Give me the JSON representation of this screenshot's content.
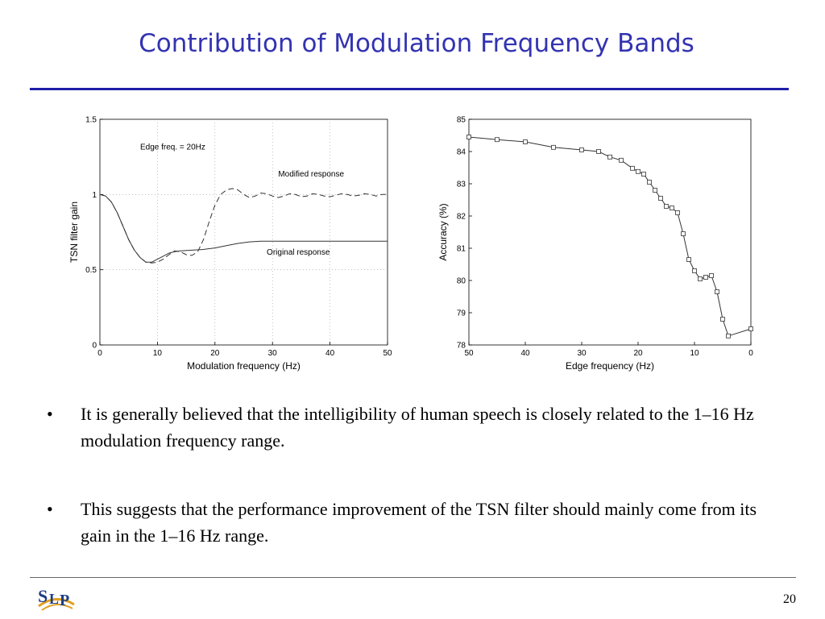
{
  "slide": {
    "title": "Contribution of Modulation Frequency Bands",
    "page_number": "20",
    "logo_text": "SLP",
    "bullets": [
      "It is generally believed that the intelligibility of human speech is closely related to the 1–16 Hz modulation frequency range.",
      "This suggests that the performance improvement of the TSN filter should mainly come from its gain in the 1–16 Hz range."
    ],
    "bullet_symbol": "•"
  },
  "chart_data": [
    {
      "type": "line",
      "xlabel": "Modulation frequency (Hz)",
      "ylabel": "TSN filter gain",
      "xlim": [
        0,
        50
      ],
      "ylim": [
        0,
        1.5
      ],
      "xticks": [
        0,
        10,
        20,
        30,
        40,
        50
      ],
      "yticks": [
        0,
        0.5,
        1,
        1.5
      ],
      "ytick_labels": [
        "0",
        "0.5",
        "1",
        "1.5"
      ],
      "grid": "dotted",
      "annotations": [
        "Edge freq. = 20Hz",
        "Modified response",
        "Original response"
      ],
      "edge_frequency": 20,
      "series": [
        {
          "name": "Original response",
          "style": "solid",
          "x": [
            0,
            1,
            2,
            3,
            4,
            5,
            6,
            7,
            8,
            9,
            10,
            11,
            12,
            13,
            14,
            16,
            18,
            20,
            22,
            24,
            26,
            28,
            30,
            35,
            40,
            45,
            50
          ],
          "y": [
            1.0,
            0.99,
            0.95,
            0.88,
            0.79,
            0.7,
            0.63,
            0.58,
            0.55,
            0.55,
            0.57,
            0.59,
            0.61,
            0.62,
            0.625,
            0.63,
            0.635,
            0.645,
            0.66,
            0.675,
            0.685,
            0.69,
            0.69,
            0.69,
            0.69,
            0.69,
            0.69
          ]
        },
        {
          "name": "Modified response",
          "style": "dashed",
          "x": [
            0,
            1,
            2,
            3,
            4,
            5,
            6,
            7,
            8,
            9,
            10,
            11,
            12,
            13,
            14,
            15,
            16,
            17,
            18,
            19,
            20,
            21,
            22,
            23,
            24,
            25,
            26,
            27,
            28,
            29,
            30,
            31,
            32,
            33,
            34,
            35,
            36,
            37,
            38,
            39,
            40,
            41,
            42,
            43,
            44,
            45,
            46,
            47,
            48,
            49,
            50
          ],
          "y": [
            1.0,
            0.99,
            0.95,
            0.88,
            0.79,
            0.7,
            0.63,
            0.58,
            0.55,
            0.545,
            0.55,
            0.57,
            0.6,
            0.625,
            0.62,
            0.6,
            0.595,
            0.62,
            0.7,
            0.82,
            0.93,
            1.0,
            1.03,
            1.04,
            1.03,
            1.0,
            0.98,
            0.99,
            1.01,
            1.005,
            0.99,
            0.98,
            0.99,
            1.005,
            1.0,
            0.985,
            0.99,
            1.005,
            1.0,
            0.99,
            0.985,
            0.995,
            1.005,
            1.0,
            0.99,
            0.995,
            1.005,
            1.0,
            0.99,
            1.0,
            1.0
          ]
        }
      ]
    },
    {
      "type": "line",
      "xlabel": "Edge frequency (Hz)",
      "ylabel": "Accuracy (%)",
      "xlim": [
        50,
        0
      ],
      "ylim": [
        78,
        85
      ],
      "xticks": [
        50,
        40,
        30,
        20,
        10,
        0
      ],
      "yticks": [
        78,
        79,
        80,
        81,
        82,
        83,
        84,
        85
      ],
      "grid": "none",
      "marker": "square",
      "series": [
        {
          "x": [
            50,
            45,
            40,
            35,
            30,
            27,
            25,
            23,
            21,
            20,
            19,
            18,
            17,
            16,
            15,
            14,
            13,
            12,
            11,
            10,
            9,
            8,
            7,
            6,
            5,
            4,
            0
          ],
          "y": [
            84.45,
            84.37,
            84.3,
            84.13,
            84.05,
            84.0,
            83.83,
            83.73,
            83.48,
            83.38,
            83.3,
            83.05,
            82.8,
            82.55,
            82.3,
            82.25,
            82.1,
            81.45,
            80.65,
            80.3,
            80.05,
            80.1,
            80.15,
            79.65,
            78.8,
            78.28,
            78.5
          ]
        }
      ]
    }
  ]
}
